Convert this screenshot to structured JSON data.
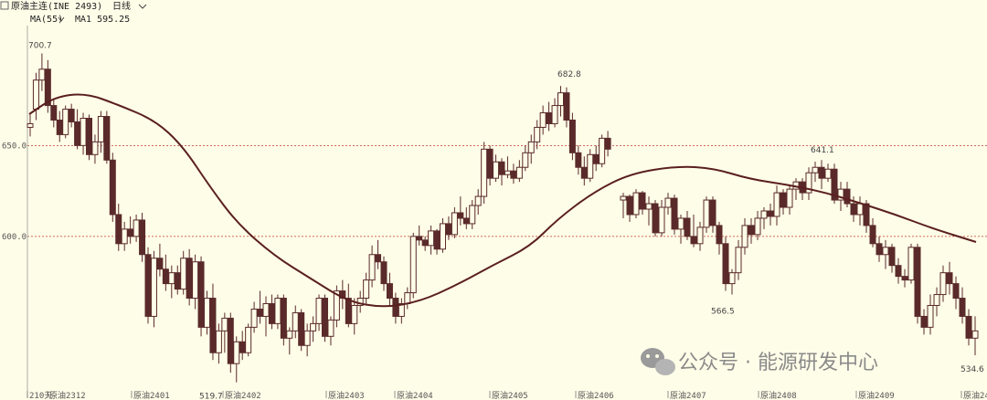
{
  "header": {
    "instrument": "原油主连(INE 2493)",
    "period": "日线",
    "indicator": "MA(55)",
    "ma_text": "MA1 595.25"
  },
  "watermark": {
    "text": "公众号 · 能源研发中心"
  },
  "colors": {
    "background": "#fefde8",
    "up": "#5a2a2a",
    "down": "#5a2a2a",
    "ma": "#5a1f1f",
    "grid": "#c0392b"
  },
  "chart_data": {
    "type": "candlestick",
    "x_ticks": [
      "210天",
      "原油2312",
      "原油2401",
      "原油2402",
      "原油2403",
      "原油2404",
      "原油2405",
      "原油2406",
      "原油2407",
      "原油2408",
      "原油2409",
      "原油24"
    ],
    "y_ticks": [
      650.0,
      600.0
    ],
    "ylim": [
      513,
      716
    ],
    "grid": "horizontal dotted",
    "annotations": [
      "700.7",
      "682.8",
      "641.1",
      "566.5",
      "519.7",
      "534.6"
    ],
    "ohlc": [
      [
        660,
        668,
        655,
        662
      ],
      [
        670,
        690,
        664,
        686
      ],
      [
        686,
        700.7,
        680,
        692
      ],
      [
        692,
        697,
        668,
        672
      ],
      [
        672,
        676,
        660,
        664
      ],
      [
        664,
        669,
        652,
        656
      ],
      [
        656,
        672,
        654,
        670
      ],
      [
        670,
        673,
        660,
        663
      ],
      [
        663,
        670,
        648,
        650
      ],
      [
        650,
        668,
        645,
        665
      ],
      [
        665,
        667,
        642,
        645
      ],
      [
        645,
        656,
        640,
        652
      ],
      [
        652,
        669,
        646,
        666
      ],
      [
        666,
        669,
        640,
        642
      ],
      [
        642,
        646,
        608,
        612
      ],
      [
        612,
        618,
        592,
        596
      ],
      [
        596,
        608,
        592,
        604
      ],
      [
        604,
        611,
        596,
        600
      ],
      [
        600,
        612,
        597,
        609
      ],
      [
        609,
        613,
        586,
        590
      ],
      [
        590,
        594,
        552,
        556
      ],
      [
        556,
        592,
        550,
        588
      ],
      [
        588,
        596,
        578,
        582
      ],
      [
        582,
        590,
        570,
        574
      ],
      [
        574,
        584,
        566,
        580
      ],
      [
        580,
        584,
        568,
        571
      ],
      [
        571,
        592,
        568,
        588
      ],
      [
        588,
        593,
        562,
        566
      ],
      [
        566,
        590,
        560,
        586
      ],
      [
        586,
        589,
        545,
        550
      ],
      [
        550,
        570,
        546,
        566
      ],
      [
        566,
        574,
        532,
        536
      ],
      [
        536,
        552,
        530,
        548
      ],
      [
        548,
        558,
        536,
        555
      ],
      [
        555,
        558,
        525,
        530
      ],
      [
        530,
        545,
        519.7,
        542
      ],
      [
        542,
        548,
        532,
        536
      ],
      [
        536,
        552,
        534,
        550
      ],
      [
        550,
        564,
        547,
        560
      ],
      [
        560,
        570,
        552,
        556
      ],
      [
        556,
        567,
        545,
        563
      ],
      [
        563,
        568,
        549,
        552
      ],
      [
        552,
        568,
        549,
        566
      ],
      [
        566,
        568,
        540,
        544
      ],
      [
        544,
        550,
        535,
        548
      ],
      [
        548,
        562,
        544,
        558
      ],
      [
        558,
        560,
        537,
        540
      ],
      [
        540,
        552,
        534,
        548
      ],
      [
        548,
        556,
        542,
        552
      ],
      [
        552,
        568,
        548,
        566
      ],
      [
        566,
        568,
        542,
        545
      ],
      [
        545,
        556,
        540,
        554
      ],
      [
        554,
        573,
        550,
        570
      ],
      [
        570,
        576,
        560,
        566
      ],
      [
        566,
        574,
        550,
        552
      ],
      [
        552,
        566,
        546,
        562
      ],
      [
        562,
        570,
        558,
        566
      ],
      [
        566,
        580,
        562,
        576
      ],
      [
        576,
        595,
        572,
        590
      ],
      [
        590,
        598,
        582,
        586
      ],
      [
        586,
        589,
        570,
        574
      ],
      [
        574,
        580,
        562,
        566
      ],
      [
        566,
        569,
        552,
        556
      ],
      [
        556,
        566,
        552,
        563
      ],
      [
        563,
        572,
        560,
        569
      ],
      [
        569,
        602,
        566,
        600
      ],
      [
        600,
        606,
        595,
        598
      ],
      [
        598,
        600,
        592,
        595
      ],
      [
        595,
        606,
        590,
        603
      ],
      [
        603,
        604,
        590,
        593
      ],
      [
        593,
        610,
        591,
        607
      ],
      [
        607,
        611,
        598,
        601
      ],
      [
        601,
        616,
        599,
        613
      ],
      [
        613,
        622,
        606,
        610
      ],
      [
        610,
        616,
        604,
        607
      ],
      [
        607,
        620,
        604,
        617
      ],
      [
        617,
        626,
        612,
        622
      ],
      [
        622,
        652,
        618,
        648
      ],
      [
        648,
        650,
        628,
        632
      ],
      [
        632,
        645,
        630,
        641
      ],
      [
        641,
        643,
        628,
        634
      ],
      [
        634,
        644,
        632,
        636
      ],
      [
        636,
        640,
        629,
        632
      ],
      [
        632,
        642,
        630,
        638
      ],
      [
        638,
        650,
        636,
        646
      ],
      [
        646,
        656,
        640,
        652
      ],
      [
        652,
        664,
        648,
        660
      ],
      [
        660,
        672,
        656,
        668
      ],
      [
        668,
        674,
        658,
        662
      ],
      [
        662,
        676,
        660,
        672
      ],
      [
        672,
        682.8,
        666,
        679
      ],
      [
        679,
        682,
        660,
        664
      ],
      [
        664,
        668,
        642,
        646
      ],
      [
        646,
        650,
        634,
        638
      ],
      [
        638,
        644,
        628,
        632
      ],
      [
        632,
        648,
        630,
        645
      ],
      [
        645,
        650,
        636,
        640
      ],
      [
        640,
        656,
        638,
        654
      ],
      [
        654,
        658,
        644,
        648
      ]
    ],
    "ohlc_2": [
      [
        620,
        624,
        610,
        622
      ],
      [
        622,
        623,
        608,
        612
      ],
      [
        612,
        626,
        610,
        624
      ],
      [
        624,
        625,
        612,
        615
      ],
      [
        615,
        622,
        606,
        618
      ],
      [
        618,
        620,
        600,
        602
      ],
      [
        602,
        620,
        600,
        616
      ],
      [
        616,
        624,
        612,
        621
      ],
      [
        621,
        623,
        601,
        604
      ],
      [
        604,
        612,
        596,
        610
      ],
      [
        610,
        614,
        598,
        600
      ],
      [
        600,
        612,
        594,
        596
      ],
      [
        596,
        608,
        592,
        605
      ],
      [
        605,
        622,
        602,
        620
      ],
      [
        620,
        622,
        602,
        606
      ],
      [
        606,
        608,
        590,
        596
      ],
      [
        596,
        600,
        570,
        574
      ],
      [
        574,
        582,
        568,
        580
      ],
      [
        580,
        598,
        576,
        594
      ],
      [
        594,
        610,
        590,
        606
      ],
      [
        606,
        610,
        596,
        601
      ],
      [
        601,
        614,
        598,
        610
      ],
      [
        610,
        616,
        604,
        614
      ],
      [
        614,
        618,
        606,
        611
      ],
      [
        611,
        628,
        606,
        624
      ],
      [
        624,
        626,
        612,
        616
      ],
      [
        616,
        628,
        612,
        626
      ],
      [
        626,
        632,
        620,
        630
      ],
      [
        630,
        632,
        620,
        624
      ],
      [
        624,
        638,
        620,
        635
      ],
      [
        635,
        641.1,
        630,
        638
      ],
      [
        638,
        642,
        626,
        632
      ],
      [
        632,
        640,
        630,
        637
      ],
      [
        637,
        640,
        618,
        620
      ],
      [
        620,
        630,
        614,
        626
      ],
      [
        626,
        630,
        616,
        618
      ],
      [
        618,
        622,
        608,
        612
      ],
      [
        612,
        622,
        606,
        618
      ],
      [
        618,
        620,
        602,
        606
      ],
      [
        606,
        610,
        594,
        596
      ],
      [
        596,
        600,
        586,
        590
      ],
      [
        590,
        598,
        582,
        594
      ],
      [
        594,
        596,
        580,
        584
      ],
      [
        584,
        588,
        574,
        578
      ],
      [
        578,
        582,
        572,
        576
      ],
      [
        576,
        596,
        574,
        594
      ],
      [
        594,
        596,
        552,
        556
      ],
      [
        556,
        560,
        546,
        550
      ],
      [
        550,
        568,
        546,
        562
      ],
      [
        562,
        572,
        556,
        568
      ],
      [
        568,
        584,
        564,
        580
      ],
      [
        580,
        586,
        568,
        574
      ],
      [
        574,
        578,
        560,
        566
      ],
      [
        566,
        572,
        552,
        556
      ],
      [
        556,
        560,
        540,
        544
      ],
      [
        544,
        556,
        534.6,
        548
      ]
    ]
  }
}
